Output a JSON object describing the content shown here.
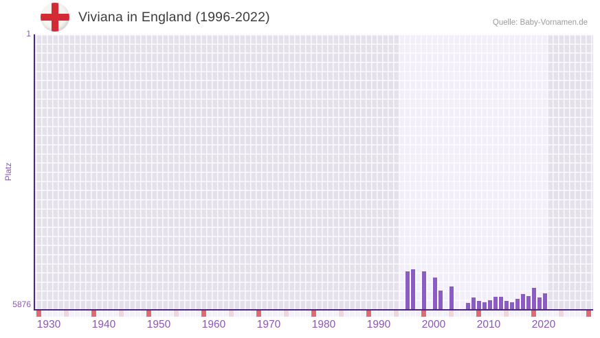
{
  "header": {
    "title": "Viviana in England (1996-2022)",
    "source": "Quelle: Baby-Vornamen.de"
  },
  "chart_data": {
    "type": "bar",
    "title": "Viviana in England (1996-2022)",
    "ylabel": "Platz",
    "y_axis": {
      "min": 1,
      "max": 5876,
      "inverted": true,
      "tick_labels": [
        "1",
        "5876"
      ]
    },
    "x_axis": {
      "range_years": [
        1929,
        2031
      ],
      "tick_labels": [
        "1930",
        "1940",
        "1950",
        "1960",
        "1970",
        "1980",
        "1990",
        "2000",
        "2010",
        "2020"
      ],
      "major_tick_every": 10,
      "minor_tick_every": 5
    },
    "highlight_year_range": [
      1996,
      2022
    ],
    "grid": true,
    "legend": false,
    "series": [
      {
        "name": "Platz",
        "data": [
          {
            "year": 1997,
            "rank": 5068
          },
          {
            "year": 1998,
            "rank": 5024
          },
          {
            "year": 2000,
            "rank": 5068
          },
          {
            "year": 2002,
            "rank": 5205
          },
          {
            "year": 2003,
            "rank": 5475
          },
          {
            "year": 2005,
            "rank": 5396
          },
          {
            "year": 2008,
            "rank": 5739
          },
          {
            "year": 2009,
            "rank": 5626
          },
          {
            "year": 2010,
            "rank": 5704
          },
          {
            "year": 2011,
            "rank": 5725
          },
          {
            "year": 2012,
            "rank": 5689
          },
          {
            "year": 2013,
            "rank": 5607
          },
          {
            "year": 2014,
            "rank": 5607
          },
          {
            "year": 2015,
            "rank": 5704
          },
          {
            "year": 2016,
            "rank": 5729
          },
          {
            "year": 2017,
            "rank": 5651
          },
          {
            "year": 2018,
            "rank": 5548
          },
          {
            "year": 2019,
            "rank": 5592
          },
          {
            "year": 2020,
            "rank": 5421
          },
          {
            "year": 2021,
            "rank": 5622
          },
          {
            "year": 2022,
            "rank": 5542
          }
        ]
      }
    ],
    "colors": {
      "bar": "#8d5bc4",
      "axis": "#4f2583",
      "label": "#8a55b5",
      "bg_outer": "#e4e0ec",
      "bg_highlight": "#f2eefa",
      "tick_major": "#dc6b74",
      "tick_minor": "#f2d4dc",
      "tick_default": "#f3f0f9",
      "flag_cross": "#d32b35",
      "flag_field": "#f6f4f1"
    }
  }
}
